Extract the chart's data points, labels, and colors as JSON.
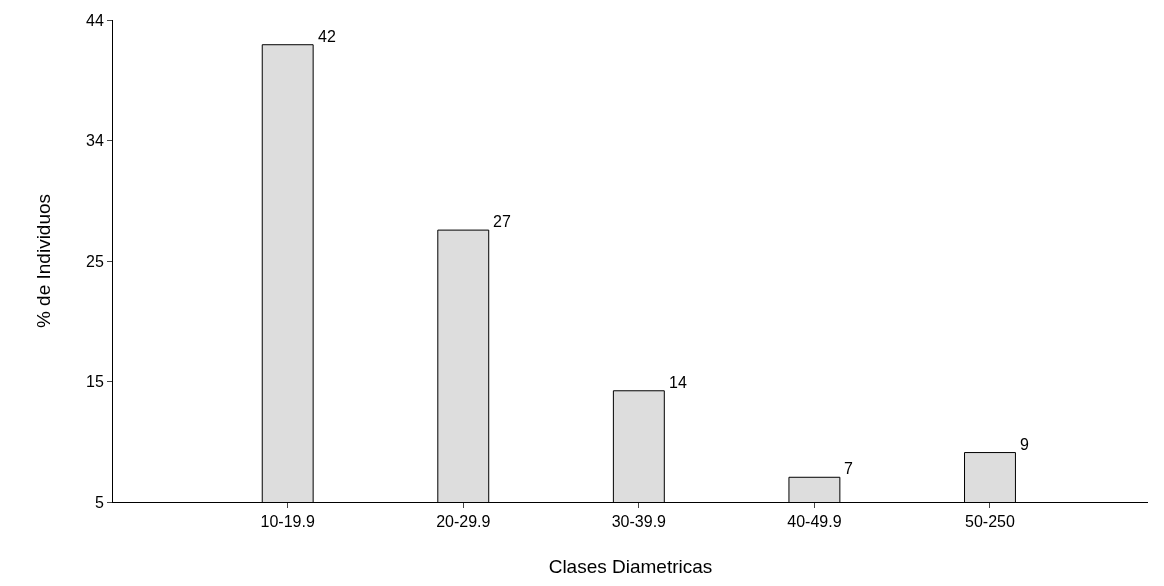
{
  "chart_data": {
    "type": "bar",
    "xlabel": "Clases Diametricas",
    "ylabel": "% de Individuos",
    "categories": [
      "10-19.9",
      "20-29.9",
      "30-39.9",
      "40-49.9",
      "50-250"
    ],
    "values": [
      42,
      27,
      14,
      7,
      9
    ],
    "color": "#dddddd",
    "data_labels": true,
    "ylim": [
      5,
      44
    ],
    "yticks": [
      5,
      {
        "value": 14.75,
        "label": "15"
      },
      {
        "value": 24.5,
        "label": "25"
      },
      {
        "value": 34.25,
        "label": "34"
      },
      44
    ]
  }
}
